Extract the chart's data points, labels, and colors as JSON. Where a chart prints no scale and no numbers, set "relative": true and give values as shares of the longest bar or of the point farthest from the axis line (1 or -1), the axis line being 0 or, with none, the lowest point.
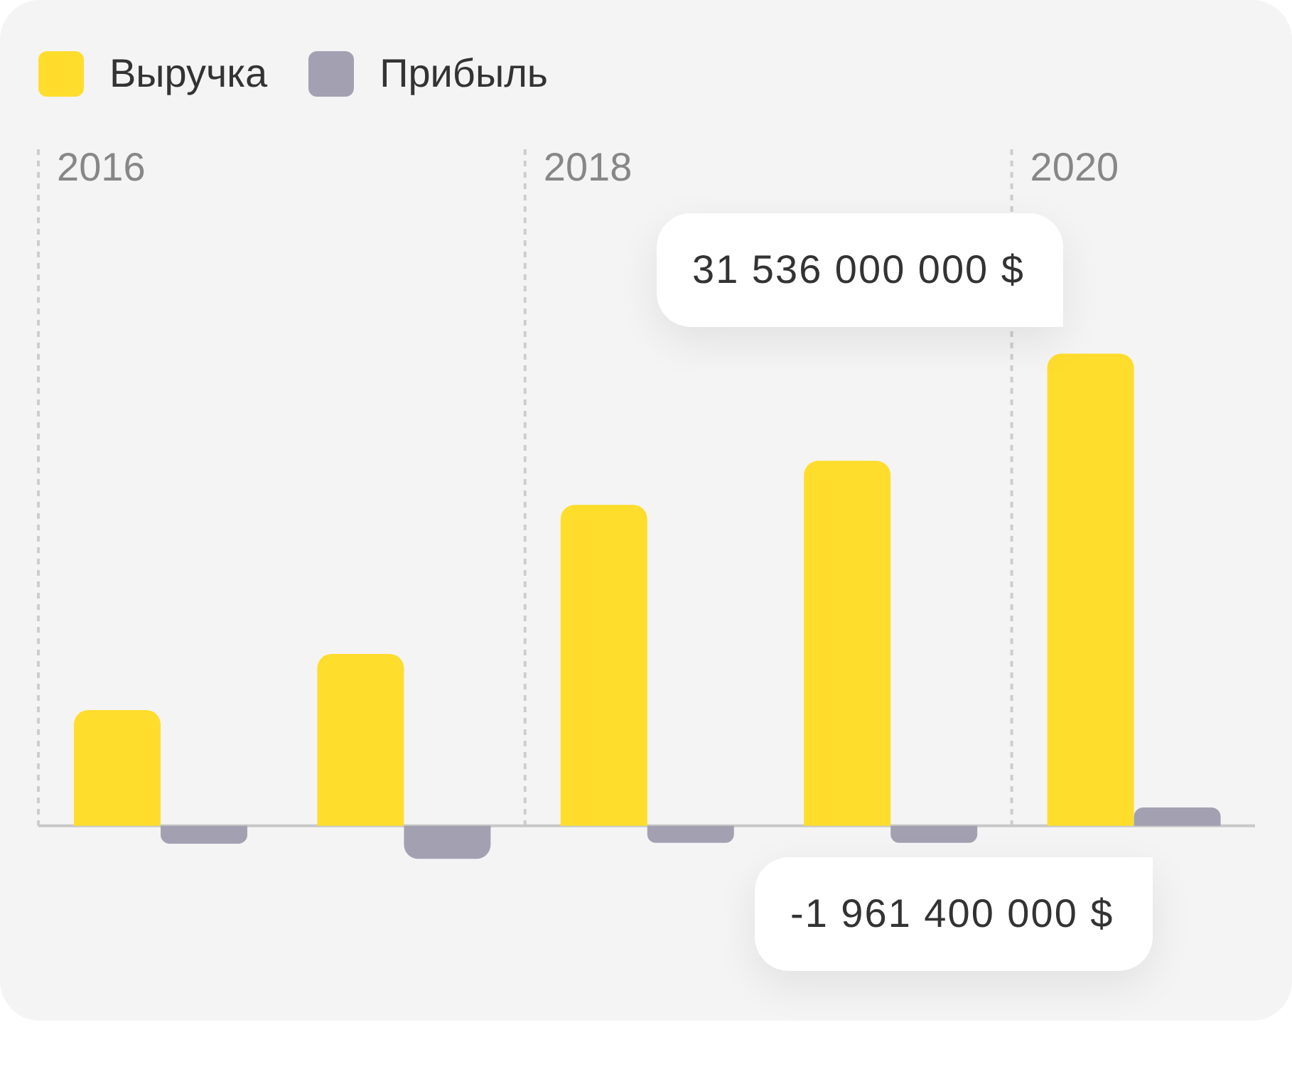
{
  "chart_data": {
    "type": "bar",
    "relative": true,
    "categories": [
      "2016",
      null,
      "2018",
      null,
      "2020"
    ],
    "series": [
      {
        "name": "Выручка",
        "color": "#ffdd2d",
        "values": [
          0.245,
          0.364,
          0.68,
          0.773,
          1
        ]
      },
      {
        "name": "Прибыль",
        "color": "#a3a1b1",
        "values": [
          -0.038,
          -0.07,
          -0.036,
          -0.036,
          0.039
        ]
      }
    ],
    "legend": "top left",
    "ref_lines": [
      {
        "axis": "x",
        "value": "2016",
        "color": "#cdcdcd",
        "line_style": "dashed"
      },
      {
        "axis": "x",
        "value": "2018",
        "color": "#cdcdcd",
        "line_style": "dashed"
      },
      {
        "axis": "x",
        "value": "2020",
        "color": "#cdcdcd",
        "line_style": "dashed"
      }
    ],
    "annotations": [
      "31 536 000 000 $",
      "-1 961 400 000 $"
    ]
  }
}
